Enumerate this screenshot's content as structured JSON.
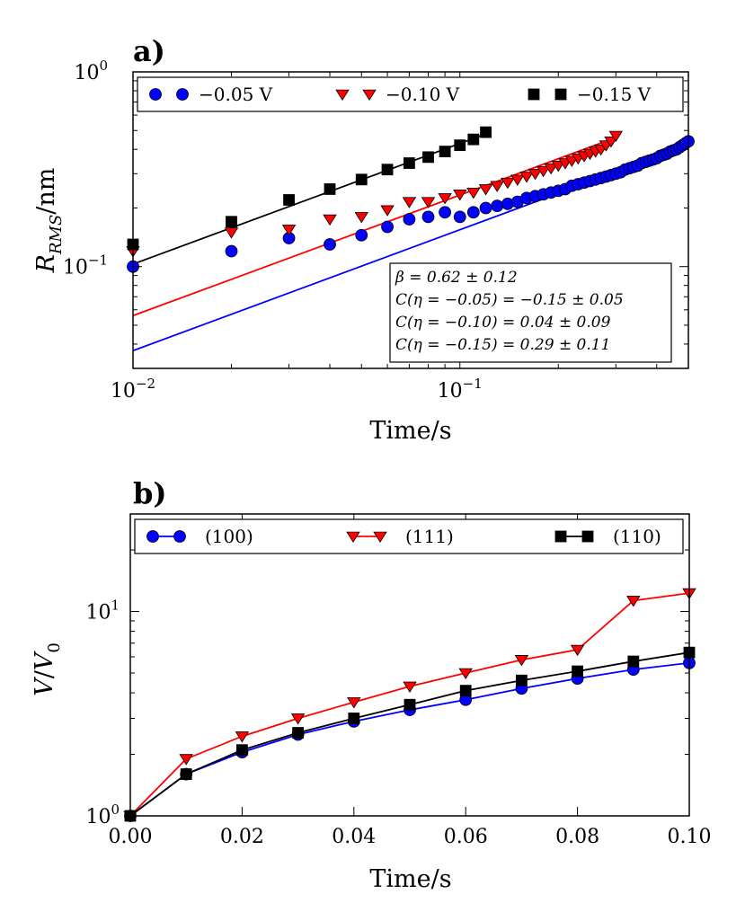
{
  "chart_data": [
    {
      "panel": "a)",
      "type": "scatter",
      "xscale": "log",
      "yscale": "log",
      "xlim": [
        0.01,
        0.5
      ],
      "ylim": [
        0.03,
        1.0
      ],
      "xlabel": "Time/s",
      "ylabel": "R_RMS/nm",
      "xticks": [
        {
          "value": 0.01,
          "base": "10",
          "exp": "−2"
        },
        {
          "value": 0.1,
          "base": "10",
          "exp": "−1"
        }
      ],
      "yticks": [
        {
          "value": 0.1,
          "base": "10",
          "exp": "−1"
        },
        {
          "value": 1.0,
          "base": "10",
          "exp": "0"
        }
      ],
      "legend": {
        "loc": "top"
      },
      "annotation": [
        "β = 0.62 ± 0.12",
        "C(η = −0.05) = −0.15 ± 0.05",
        "C(η = −0.10) = 0.04 ± 0.09",
        "C(η = −0.15) = 0.29 ± 0.11"
      ],
      "series": [
        {
          "name": "−0.05 V",
          "color": "#0000ff",
          "marker": "circle",
          "x": [
            0.01,
            0.02,
            0.03,
            0.04,
            0.05,
            0.06,
            0.07,
            0.08,
            0.09,
            0.1,
            0.11,
            0.12,
            0.13,
            0.14,
            0.15,
            0.16,
            0.17,
            0.18,
            0.19,
            0.2,
            0.21,
            0.22,
            0.23,
            0.24,
            0.25,
            0.26,
            0.27,
            0.28,
            0.29,
            0.3,
            0.31,
            0.32,
            0.33,
            0.34,
            0.35,
            0.36,
            0.37,
            0.38,
            0.39,
            0.4,
            0.41,
            0.42,
            0.43,
            0.44,
            0.45,
            0.46,
            0.47,
            0.48,
            0.49,
            0.5
          ],
          "y": [
            0.1,
            0.12,
            0.14,
            0.13,
            0.145,
            0.16,
            0.175,
            0.18,
            0.19,
            0.18,
            0.19,
            0.2,
            0.205,
            0.21,
            0.215,
            0.225,
            0.23,
            0.235,
            0.24,
            0.245,
            0.25,
            0.26,
            0.265,
            0.27,
            0.275,
            0.28,
            0.285,
            0.29,
            0.295,
            0.3,
            0.305,
            0.315,
            0.32,
            0.325,
            0.33,
            0.34,
            0.345,
            0.35,
            0.355,
            0.36,
            0.37,
            0.375,
            0.38,
            0.39,
            0.395,
            0.4,
            0.41,
            0.42,
            0.43,
            0.44
          ]
        },
        {
          "name": "−0.10 V",
          "color": "#ff0000",
          "marker": "triangle-down",
          "x": [
            0.01,
            0.02,
            0.03,
            0.04,
            0.05,
            0.06,
            0.07,
            0.08,
            0.09,
            0.1,
            0.11,
            0.12,
            0.13,
            0.14,
            0.15,
            0.16,
            0.17,
            0.18,
            0.19,
            0.2,
            0.21,
            0.22,
            0.23,
            0.24,
            0.25,
            0.26,
            0.27,
            0.28,
            0.29,
            0.3
          ],
          "y": [
            0.12,
            0.15,
            0.155,
            0.175,
            0.18,
            0.195,
            0.215,
            0.215,
            0.225,
            0.235,
            0.24,
            0.25,
            0.26,
            0.27,
            0.28,
            0.29,
            0.3,
            0.31,
            0.32,
            0.33,
            0.34,
            0.35,
            0.36,
            0.37,
            0.38,
            0.39,
            0.4,
            0.42,
            0.44,
            0.47
          ]
        },
        {
          "name": "−0.15 V",
          "color": "#000000",
          "marker": "square",
          "x": [
            0.01,
            0.02,
            0.03,
            0.04,
            0.05,
            0.06,
            0.07,
            0.08,
            0.09,
            0.1,
            0.11,
            0.12
          ],
          "y": [
            0.13,
            0.17,
            0.22,
            0.25,
            0.28,
            0.315,
            0.34,
            0.365,
            0.39,
            0.42,
            0.45,
            0.49
          ]
        }
      ],
      "fits": [
        {
          "name": "fit −0.05 V",
          "color": "#0000ff",
          "x": [
            0.01,
            0.5
          ],
          "y": [
            0.037,
            0.42
          ]
        },
        {
          "name": "fit −0.10 V",
          "color": "#ff0000",
          "x": [
            0.01,
            0.3
          ],
          "y": [
            0.056,
            0.46
          ]
        },
        {
          "name": "fit −0.15 V",
          "color": "#000000",
          "x": [
            0.01,
            0.12
          ],
          "y": [
            0.103,
            0.48
          ]
        }
      ]
    },
    {
      "panel": "b)",
      "type": "line",
      "xscale": "linear",
      "yscale": "log",
      "xlim": [
        0.0,
        0.1
      ],
      "ylim": [
        1.0,
        30.0
      ],
      "xlabel": "Time/s",
      "ylabel": "V/V_0",
      "xticks": [
        {
          "value": 0.0,
          "label": "0.00"
        },
        {
          "value": 0.02,
          "label": "0.02"
        },
        {
          "value": 0.04,
          "label": "0.04"
        },
        {
          "value": 0.06,
          "label": "0.06"
        },
        {
          "value": 0.08,
          "label": "0.08"
        },
        {
          "value": 0.1,
          "label": "0.10"
        }
      ],
      "yticks": [
        {
          "value": 1.0,
          "base": "10",
          "exp": "0"
        },
        {
          "value": 10.0,
          "base": "10",
          "exp": "1"
        }
      ],
      "legend": {
        "loc": "top"
      },
      "x": [
        0.0,
        0.01,
        0.02,
        0.03,
        0.04,
        0.05,
        0.06,
        0.07,
        0.08,
        0.09,
        0.1
      ],
      "series": [
        {
          "name": "(100)",
          "color": "#0000ff",
          "marker": "circle",
          "values": [
            1.0,
            1.6,
            2.05,
            2.5,
            2.9,
            3.3,
            3.7,
            4.2,
            4.7,
            5.2,
            5.6
          ]
        },
        {
          "name": "(111)",
          "color": "#ff0000",
          "marker": "triangle-down",
          "values": [
            1.0,
            1.9,
            2.45,
            3.0,
            3.6,
            4.3,
            5.0,
            5.8,
            6.5,
            11.3,
            12.3
          ]
        },
        {
          "name": "(110)",
          "color": "#000000",
          "marker": "square",
          "values": [
            1.0,
            1.6,
            2.1,
            2.55,
            3.0,
            3.5,
            4.1,
            4.6,
            5.1,
            5.7,
            6.3
          ]
        }
      ]
    }
  ]
}
